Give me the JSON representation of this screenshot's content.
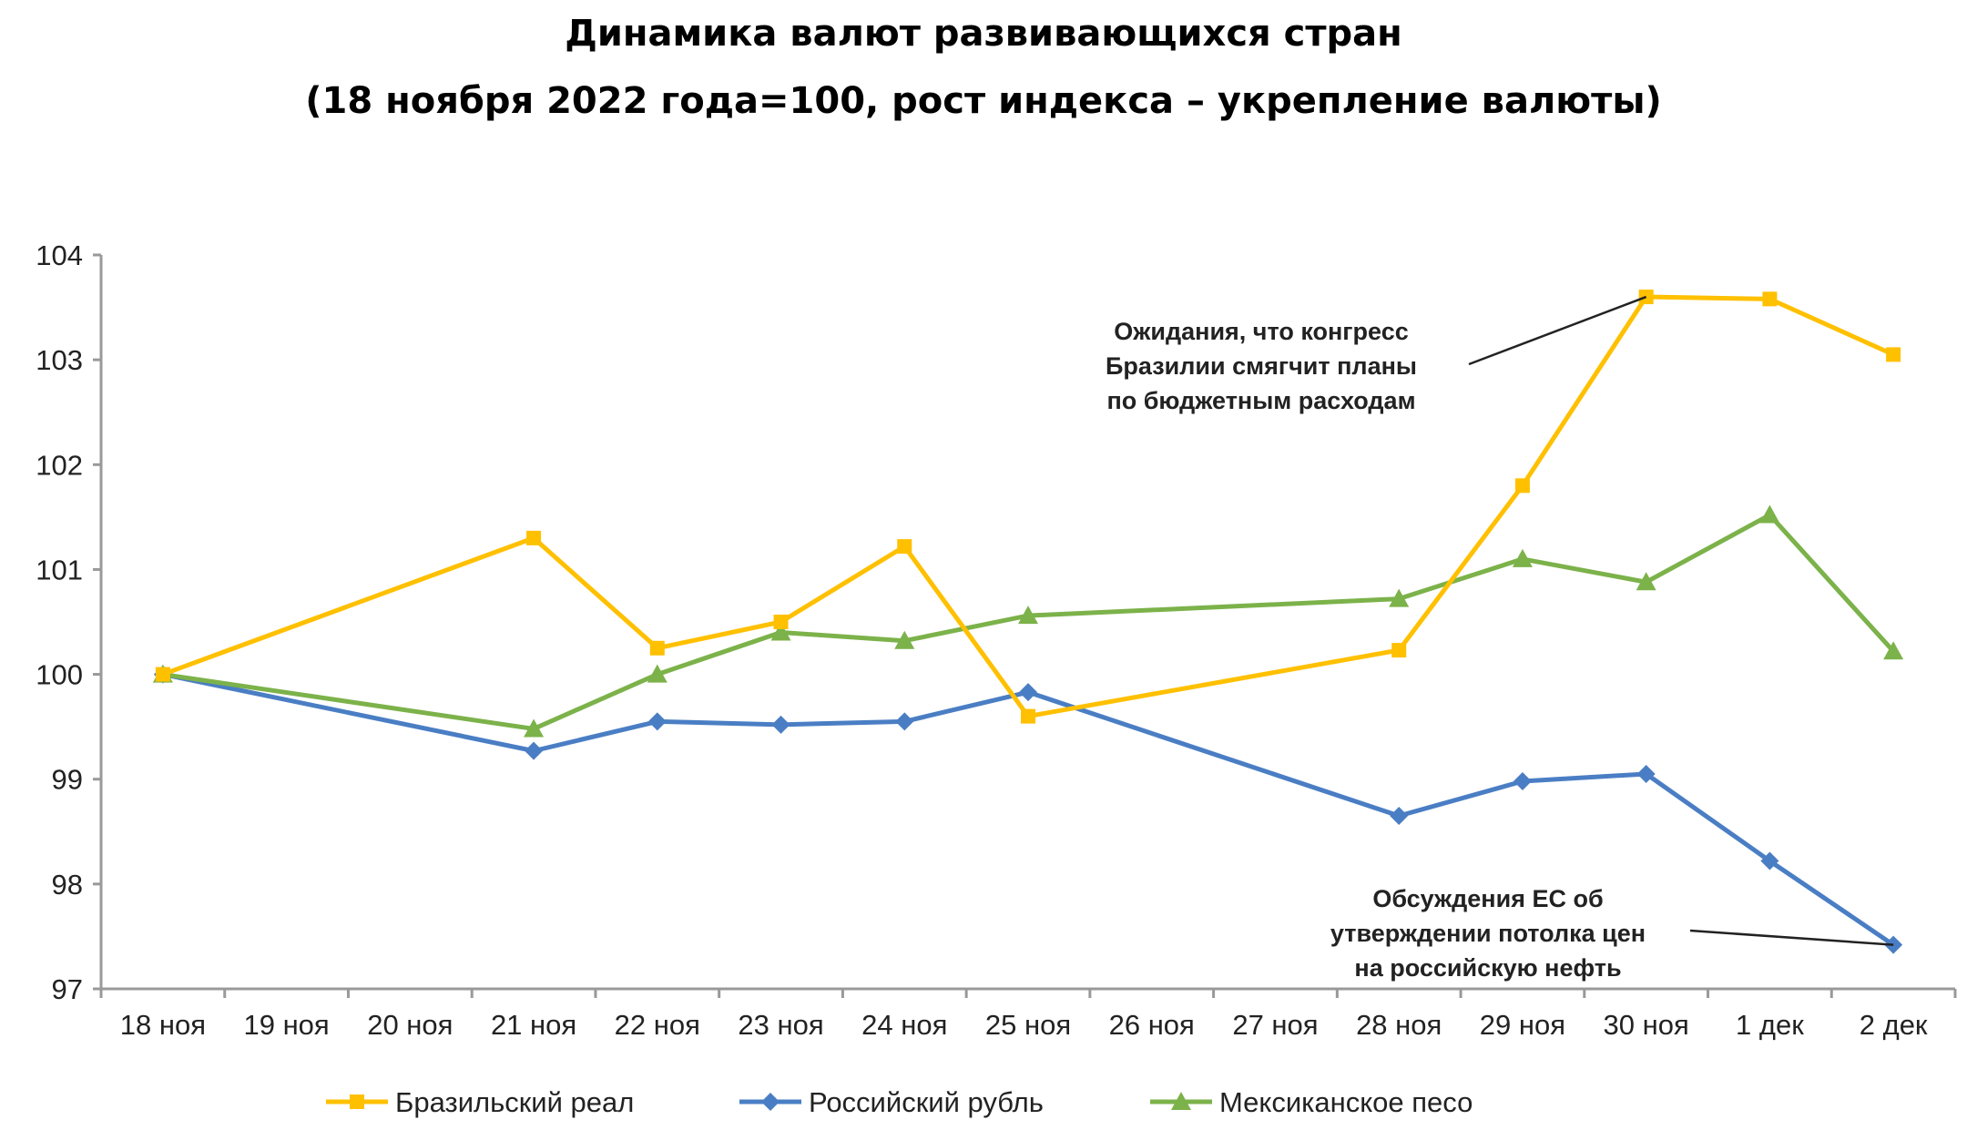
{
  "chart_data": {
    "type": "line",
    "title": "Динамика валют развивающихся стран",
    "subtitle": "(18 ноября 2022 года=100, рост индекса – укрепление валюты)",
    "xlabel": "",
    "ylabel": "",
    "categories": [
      "18 ноя",
      "19 ноя",
      "20 ноя",
      "21 ноя",
      "22 ноя",
      "23 ноя",
      "24 ноя",
      "25 ноя",
      "26 ноя",
      "27 ноя",
      "28 ноя",
      "29 ноя",
      "30 ноя",
      "1 дек",
      "2 дек"
    ],
    "x": [
      "18 ноя",
      "21 ноя",
      "22 ноя",
      "23 ноя",
      "24 ноя",
      "25 ноя",
      "28 ноя",
      "29 ноя",
      "30 ноя",
      "1 дек",
      "2 дек"
    ],
    "ylim": [
      97,
      104
    ],
    "yticks": [
      97,
      98,
      99,
      100,
      101,
      102,
      103,
      104
    ],
    "grid": false,
    "legend_position": "bottom",
    "series": [
      {
        "name": "Бразильский реал",
        "color": "#FFC000",
        "marker": "square",
        "values": [
          100.0,
          101.3,
          100.25,
          100.5,
          101.22,
          99.6,
          100.23,
          101.8,
          103.6,
          103.58,
          103.05
        ]
      },
      {
        "name": "Российский рубль",
        "color": "#4A7EC4",
        "marker": "diamond",
        "values": [
          100.0,
          99.27,
          99.55,
          99.52,
          99.55,
          99.83,
          98.65,
          98.98,
          99.05,
          98.22,
          97.42
        ]
      },
      {
        "name": "Мексиканское песо",
        "color": "#7CB24A",
        "marker": "triangle",
        "values": [
          100.0,
          99.48,
          100.0,
          100.4,
          100.32,
          100.56,
          100.72,
          101.1,
          100.88,
          101.52,
          100.22
        ]
      }
    ],
    "annotations": [
      {
        "lines": [
          "Ожидания, что конгресс",
          "Бразилии смягчит планы",
          "по бюджетным расходам"
        ],
        "series": 0,
        "point": "30 ноя"
      },
      {
        "lines": [
          "Обсуждения ЕС об",
          "утверждении потолка цен",
          "на российскую нефть"
        ],
        "series": 1,
        "point": "2 дек"
      }
    ]
  }
}
